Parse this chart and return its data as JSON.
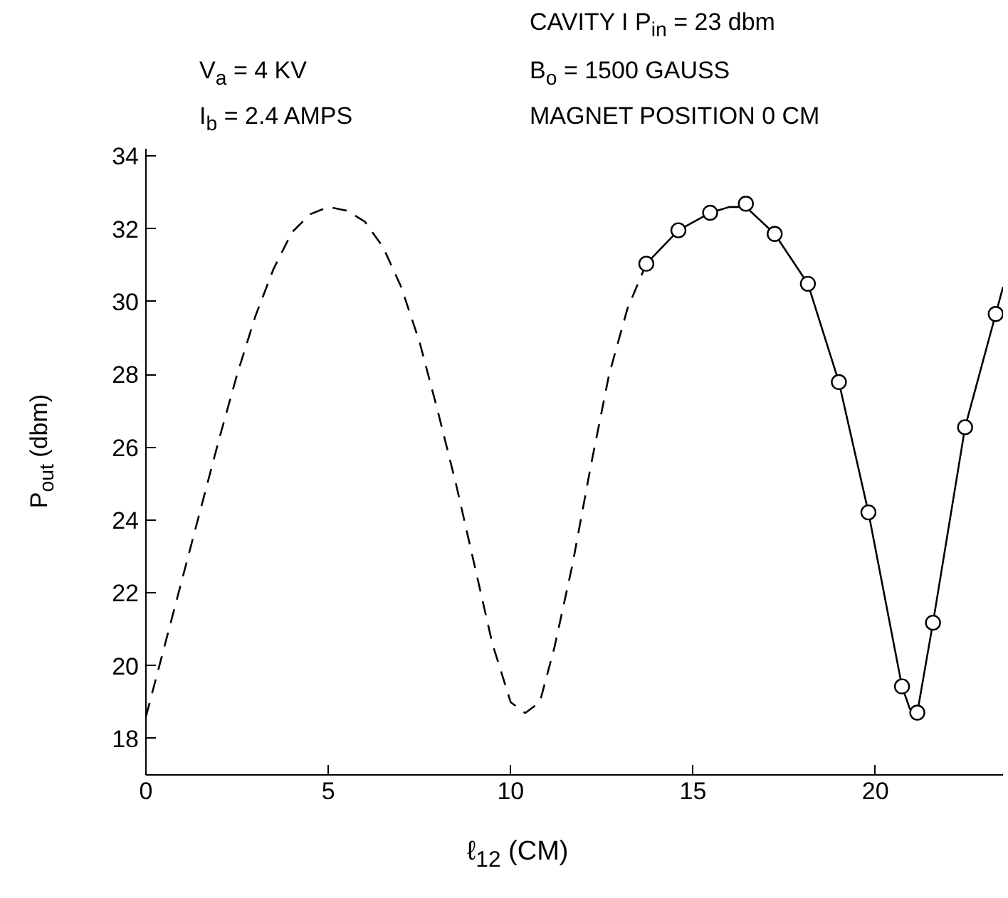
{
  "chart_data": {
    "type": "line",
    "xlabel": "ℓ$_{12}$ (CM)",
    "ylabel": "P$_{out}$ (dbm)",
    "annotations": [
      "CAVITY I P$_{in}$ = 23 dbm",
      "V$_{a}$ = 4 KV",
      "B$_{o}$ = 1500 GAUSS",
      "I$_{b}$ = 2.4 AMPS",
      "MAGNET POSITION 0 CM"
    ],
    "xlim": [
      0,
      23.5
    ],
    "ylim": [
      17,
      34.2
    ],
    "xticks": [
      0,
      5,
      10,
      15,
      20
    ],
    "yticks": [
      18,
      20,
      22,
      24,
      26,
      28,
      30,
      32,
      34
    ],
    "series": [
      {
        "line_style": "dashed",
        "color": "#000000",
        "x": [
          0,
          0.5,
          1,
          1.5,
          2,
          2.5,
          3,
          3.5,
          4,
          4.5,
          5,
          5.5,
          6,
          6.5,
          7,
          7.5,
          8,
          8.5,
          9,
          9.5,
          10,
          10.4,
          10.8,
          11.2,
          11.7,
          12.2,
          12.7,
          13.2,
          13.72
        ],
        "values": [
          18.6,
          20.5,
          22.4,
          24.3,
          26.2,
          28.0,
          29.6,
          30.9,
          31.9,
          32.4,
          32.6,
          32.5,
          32.2,
          31.5,
          30.4,
          28.9,
          27.0,
          25.0,
          22.8,
          20.6,
          19.0,
          18.7,
          19.0,
          20.5,
          22.8,
          25.5,
          28.0,
          29.8,
          31.04
        ]
      },
      {
        "line_style": "solid",
        "color": "#000000",
        "x": [
          13.72,
          14.6,
          15.47,
          16.0,
          16.45,
          17.24,
          18.15,
          19.0,
          19.81,
          20.73,
          20.95,
          21.15,
          21.58,
          22.46,
          23.3,
          23.5
        ],
        "values": [
          31.04,
          31.96,
          32.44,
          32.6,
          32.6,
          31.86,
          30.49,
          27.79,
          24.21,
          19.43,
          18.8,
          18.71,
          21.18,
          26.55,
          29.66,
          30.4
        ]
      },
      {
        "type": "scatter",
        "marker": "circle",
        "color": "#000000",
        "x": [
          13.72,
          14.6,
          15.47,
          16.45,
          17.24,
          18.15,
          19.0,
          19.81,
          20.73,
          21.15,
          21.58,
          22.46,
          23.3
        ],
        "values": [
          31.04,
          31.96,
          32.44,
          32.69,
          31.86,
          30.49,
          27.79,
          24.21,
          19.43,
          18.71,
          21.18,
          26.55,
          29.66
        ]
      }
    ]
  }
}
